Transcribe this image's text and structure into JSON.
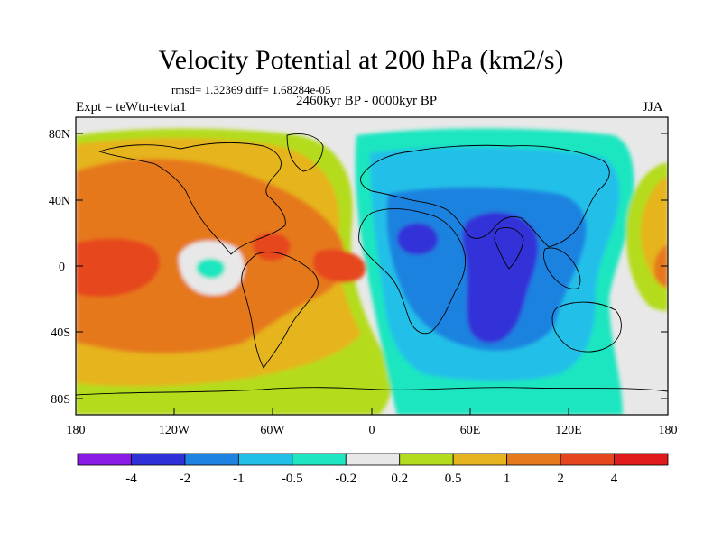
{
  "title": "Velocity Potential at 200 hPa (km2/s)",
  "stats": "rmsd= 1.32369 diff= 1.68284e-05",
  "expt_label": "Expt = teWtn-tevta1",
  "period_label": "2460kyr BP - 0000kyr BP",
  "season_label": "JJA",
  "map": {
    "lon_ticks": [
      "180",
      "120W",
      "60W",
      "0",
      "60E",
      "120E",
      "180"
    ],
    "lat_ticks": [
      "80N",
      "40N",
      "0",
      "40S",
      "80S"
    ]
  },
  "colorbar": {
    "labels": [
      "-4",
      "-2",
      "-1",
      "-0.5",
      "-0.2",
      "0.2",
      "0.5",
      "1",
      "2",
      "4"
    ],
    "colors": [
      "#8a1ae6",
      "#3030d8",
      "#1e82e0",
      "#20c0e8",
      "#1ee6c0",
      "#e8e8e8",
      "#b4dc1e",
      "#e6b41e",
      "#e6781e",
      "#e6461e",
      "#e01a1a"
    ]
  }
}
